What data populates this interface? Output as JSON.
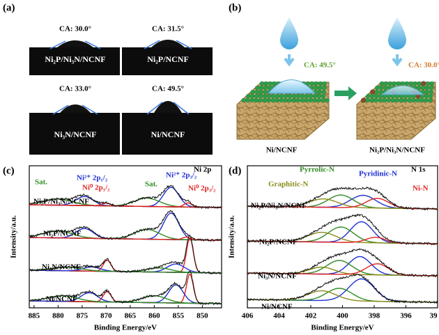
{
  "panel_a": {
    "label": "(a)",
    "items": [
      {
        "ca": "CA: 30.0°",
        "sample": "Ni₂P/Ni₃N/NCNF"
      },
      {
        "ca": "CA: 31.5°",
        "sample": "Ni₂P/NCNF"
      },
      {
        "ca": "CA: 33.0°",
        "sample": "Ni₃N/NCNF"
      },
      {
        "ca": "CA: 49.5°",
        "sample": "Ni/NCNF"
      }
    ]
  },
  "panel_b": {
    "label": "(b)",
    "ca_left": "CA: 49.5°",
    "ca_right": "CA: 30.0°",
    "sample_left": "Ni/NCNF",
    "sample_right": "Ni₂P/Ni₃N/NCNF"
  },
  "panel_c": {
    "label": "(c)",
    "corner_label": "Ni 2p",
    "xlabel": "Binding Energy/eV",
    "ylabel": "Intensity/a.u.",
    "xlim": [
      886,
      846
    ],
    "xticks": [
      885,
      880,
      875,
      870,
      865,
      860,
      855,
      850
    ],
    "samples": [
      "Ni₂P/Ni₃N/NCNF",
      "Ni₂P/NCNF",
      "Ni₃N/NCNF",
      "Ni/NCNF"
    ],
    "annotations": [
      {
        "text": "Sat.",
        "color": "#2e8b22"
      },
      {
        "text": "Ni²⁺ 2p₁/₂",
        "color": "#1f2fd0"
      },
      {
        "text": "Ni⁰ 2p₁/₂",
        "color": "#e02020"
      },
      {
        "text": "Sat.",
        "color": "#2e8b22"
      },
      {
        "text": "Ni²⁺ 2p₃/₂",
        "color": "#1f2fd0"
      },
      {
        "text": "Ni⁰ 2p₃/₂",
        "color": "#e02020"
      }
    ]
  },
  "panel_d": {
    "label": "(d)",
    "corner_label": "N 1s",
    "xlabel": "Binding Energy/eV",
    "ylabel": "Intensity/a.u.",
    "xlim": [
      406,
      394
    ],
    "xticks": [
      406,
      404,
      402,
      400,
      398,
      396,
      {
        "value": 394,
        "label": "39"
      }
    ],
    "samples": [
      "Ni₂P/Ni₃N/NCNF",
      "Ni₂P/NCNF",
      "Ni₃N/NCNF",
      "Ni/NCNF"
    ],
    "annotations": [
      {
        "text": "Pyrrolic-N",
        "color": "#2e8b22"
      },
      {
        "text": "Pyridinic-N",
        "color": "#1f2fd0"
      },
      {
        "text": "Graphitic-N",
        "color": "#8a8a1a"
      },
      {
        "text": "Ni-N",
        "color": "#e02020"
      }
    ]
  }
}
